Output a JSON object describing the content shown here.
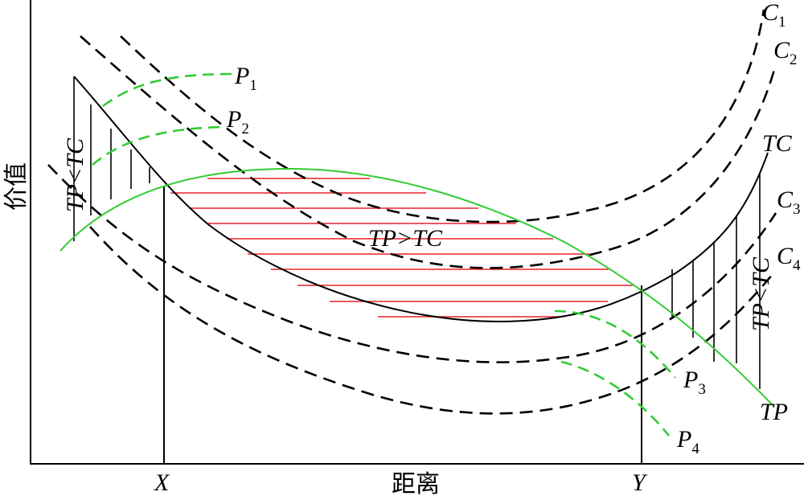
{
  "axes": {
    "ylabel": "价值",
    "xlabel": "距离",
    "x_marks": {
      "X": "X",
      "Y": "Y"
    }
  },
  "curves": {
    "C1": {
      "main": "C",
      "sub": "1"
    },
    "C2": {
      "main": "C",
      "sub": "2"
    },
    "C3": {
      "main": "C",
      "sub": "3"
    },
    "C4": {
      "main": "C",
      "sub": "4"
    },
    "TC": "TC",
    "TP": "TP",
    "P1": {
      "main": "P",
      "sub": "1"
    },
    "P2": {
      "main": "P",
      "sub": "2"
    },
    "P3": {
      "main": "P",
      "sub": "3"
    },
    "P4": {
      "main": "P",
      "sub": "4"
    }
  },
  "regions": {
    "profit": "TP>TC",
    "loss_left": "TP<TC",
    "loss_right": "TP<TC"
  },
  "colors": {
    "profit_hatch": "#e8222a",
    "tp_curve": "#33cc33",
    "cost_curves": "#000000"
  }
}
